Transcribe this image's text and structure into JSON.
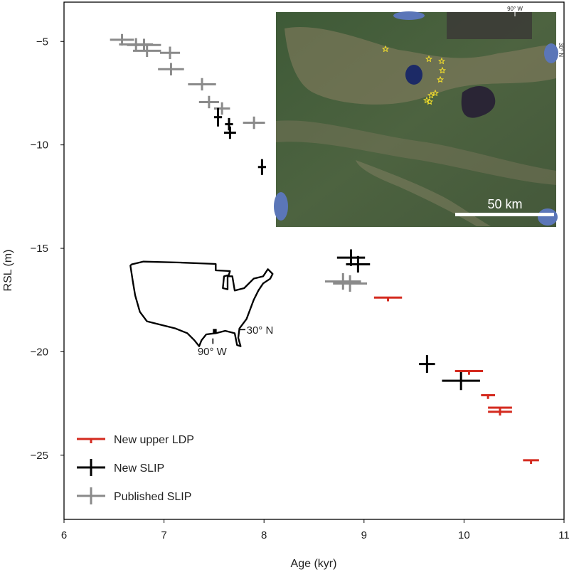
{
  "chart_data": {
    "type": "scatter",
    "title": "",
    "xlabel": "Age (kyr)",
    "ylabel": "RSL (m)",
    "xlim": [
      6,
      11
    ],
    "ylim": [
      -28.1,
      -3.1
    ],
    "xticks": [
      6,
      7,
      8,
      9,
      10,
      11
    ],
    "yticks": [
      -5,
      -10,
      -15,
      -20,
      -25
    ],
    "grid": false,
    "legend_position": "bottom-left",
    "series": [
      {
        "name": "New upper LDP",
        "color": "#d42a1f",
        "points": [
          {
            "x": 9.24,
            "y": -17.38,
            "xerr": 0.14,
            "yerr": [
              0.18,
              0
            ]
          },
          {
            "x": 10.05,
            "y": -20.93,
            "xerr": 0.14,
            "yerr": [
              0.18,
              0
            ]
          },
          {
            "x": 10.24,
            "y": -22.1,
            "xerr": 0.07,
            "yerr": [
              0.18,
              0
            ]
          },
          {
            "x": 10.36,
            "y": -22.7,
            "xerr": 0.12,
            "yerr": [
              0.18,
              0
            ]
          },
          {
            "x": 10.36,
            "y": -22.9,
            "xerr": 0.12,
            "yerr": [
              0.18,
              0
            ]
          },
          {
            "x": 10.67,
            "y": -25.24,
            "xerr": 0.08,
            "yerr": [
              0.18,
              0
            ]
          }
        ]
      },
      {
        "name": "New SLIP",
        "color": "#000000",
        "points": [
          {
            "x": 7.54,
            "y": -8.66,
            "xerr": 0.04,
            "yerr": [
              0.45,
              0.45
            ]
          },
          {
            "x": 7.65,
            "y": -9.0,
            "xerr": 0.04,
            "yerr": [
              0.3,
              0.3
            ]
          },
          {
            "x": 7.66,
            "y": -9.41,
            "xerr": 0.06,
            "yerr": [
              0.3,
              0.3
            ]
          },
          {
            "x": 7.98,
            "y": -11.07,
            "xerr": 0.04,
            "yerr": [
              0.38,
              0.38
            ]
          },
          {
            "x": 8.87,
            "y": -15.45,
            "xerr": 0.14,
            "yerr": [
              0.4,
              0.4
            ]
          },
          {
            "x": 8.94,
            "y": -15.77,
            "xerr": 0.12,
            "yerr": [
              0.4,
              0.4
            ]
          },
          {
            "x": 9.63,
            "y": -20.59,
            "xerr": 0.08,
            "yerr": [
              0.43,
              0.43
            ]
          },
          {
            "x": 9.97,
            "y": -21.4,
            "xerr": 0.19,
            "yerr": [
              0.45,
              0.45
            ]
          }
        ]
      },
      {
        "name": "Published SLIP",
        "color": "#8a8a8a",
        "points": [
          {
            "x": 6.58,
            "y": -4.92,
            "xerr": 0.12,
            "yerr": [
              0.28,
              0.28
            ]
          },
          {
            "x": 6.72,
            "y": -5.14,
            "xerr": 0.17,
            "yerr": [
              0.3,
              0.3
            ]
          },
          {
            "x": 6.8,
            "y": -5.17,
            "xerr": 0.17,
            "yerr": [
              0.3,
              0.3
            ]
          },
          {
            "x": 6.83,
            "y": -5.45,
            "xerr": 0.14,
            "yerr": [
              0.3,
              0.3
            ]
          },
          {
            "x": 7.06,
            "y": -5.55,
            "xerr": 0.1,
            "yerr": [
              0.3,
              0.3
            ]
          },
          {
            "x": 7.07,
            "y": -6.34,
            "xerr": 0.13,
            "yerr": [
              0.3,
              0.3
            ]
          },
          {
            "x": 7.38,
            "y": -7.07,
            "xerr": 0.14,
            "yerr": [
              0.3,
              0.3
            ]
          },
          {
            "x": 7.45,
            "y": -7.93,
            "xerr": 0.1,
            "yerr": [
              0.3,
              0.3
            ]
          },
          {
            "x": 7.58,
            "y": -8.24,
            "xerr": 0.08,
            "yerr": [
              0.3,
              0.3
            ]
          },
          {
            "x": 7.9,
            "y": -8.93,
            "xerr": 0.11,
            "yerr": [
              0.3,
              0.3
            ]
          },
          {
            "x": 8.79,
            "y": -16.6,
            "xerr": 0.18,
            "yerr": [
              0.4,
              0.4
            ]
          },
          {
            "x": 8.86,
            "y": -16.7,
            "xerr": 0.17,
            "yerr": [
              0.4,
              0.4
            ]
          }
        ]
      }
    ],
    "annotations": {
      "inset_map": {
        "lon_label": "90° W",
        "lat_label": "30° N",
        "scale_label": "50 km"
      },
      "us_map": {
        "lon_label": "90° W",
        "lat_label": "30° N"
      }
    }
  }
}
